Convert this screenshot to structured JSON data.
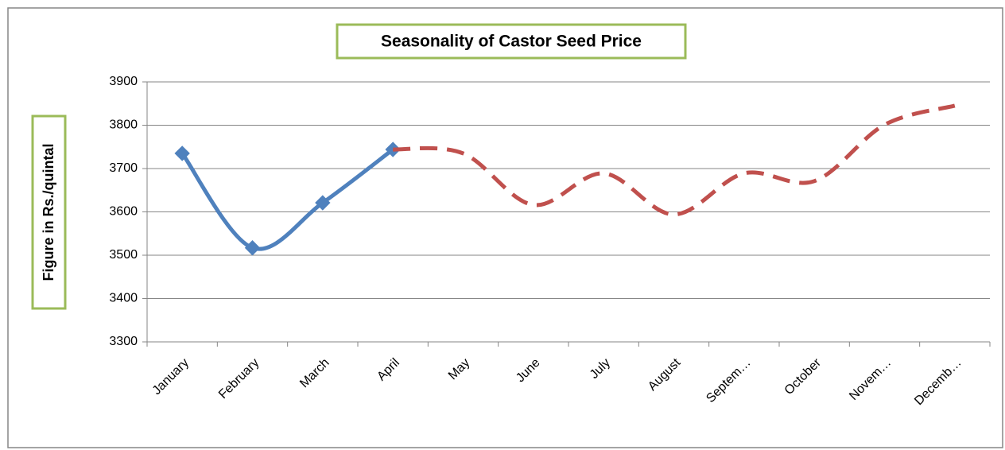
{
  "chart_data": {
    "type": "line",
    "title": "Seasonality of Castor Seed Price",
    "ylabel": "Figure in Rs./quintal",
    "categories": [
      "January",
      "February",
      "March",
      "April",
      "May",
      "June",
      "July",
      "August",
      "Septem…",
      "October",
      "Novem…",
      "Decemb…"
    ],
    "series": [
      {
        "color": "#4f81bd",
        "dashed": false,
        "marker": "diamond",
        "values": [
          3735,
          3517,
          3621,
          3744,
          null,
          null,
          null,
          null,
          null,
          null,
          null,
          null
        ]
      },
      {
        "color": "#c0504d",
        "dashed": true,
        "marker": null,
        "values": [
          null,
          null,
          null,
          3744,
          3735,
          3616,
          3689,
          3594,
          3689,
          3671,
          3801,
          3845
        ]
      }
    ],
    "ylim": [
      3300,
      3900
    ],
    "yticks": [
      3300,
      3400,
      3500,
      3600,
      3700,
      3800,
      3900
    ],
    "grid": true
  }
}
